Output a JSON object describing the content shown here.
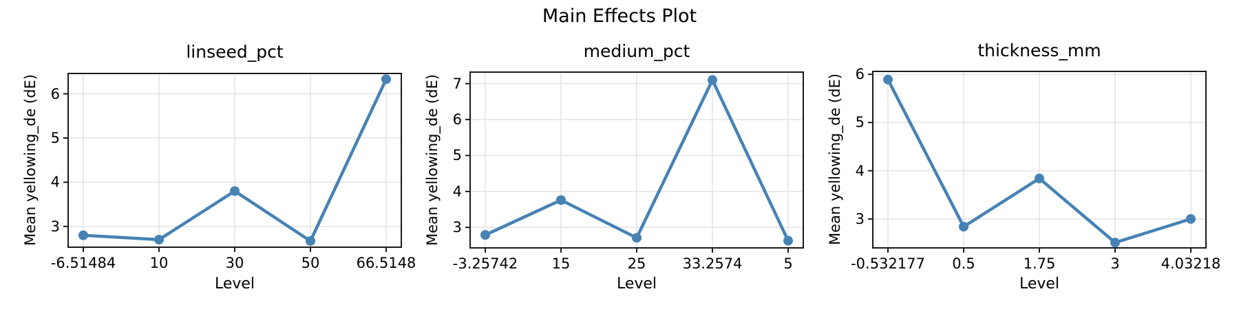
{
  "figure": {
    "suptitle": "Main Effects Plot"
  },
  "colors": {
    "line": "#4682B4",
    "grid": "#E3E3E3",
    "spine": "#1A1A1A",
    "text": "#000000"
  },
  "chart_data": [
    {
      "type": "line",
      "title": "linseed_pct",
      "xlabel": "Level",
      "ylabel": "Mean yellowing_de (dE)",
      "categories": [
        "-6.51484",
        "10",
        "30",
        "50",
        "66.5148"
      ],
      "values": [
        2.8,
        2.7,
        3.8,
        2.67,
        6.33
      ],
      "yticks": [
        3,
        4,
        5,
        6
      ],
      "ylim": [
        2.53,
        6.46
      ],
      "grid": true,
      "legend": "none"
    },
    {
      "type": "line",
      "title": "medium_pct",
      "xlabel": "Level",
      "ylabel": "Mean yellowing_de (dE)",
      "categories": [
        "-3.25742",
        "15",
        "25",
        "33.2574",
        "5"
      ],
      "values": [
        2.79,
        3.76,
        2.71,
        7.1,
        2.63
      ],
      "yticks": [
        3,
        4,
        5,
        6,
        7
      ],
      "ylim": [
        2.43,
        7.32
      ],
      "grid": true,
      "legend": "none"
    },
    {
      "type": "line",
      "title": "thickness_mm",
      "xlabel": "Level",
      "ylabel": "Mean yellowing_de (dE)",
      "categories": [
        "-0.532177",
        "0.5",
        "1.75",
        "3",
        "4.03218"
      ],
      "values": [
        5.89,
        2.84,
        3.84,
        2.51,
        3.0
      ],
      "yticks": [
        3,
        4,
        5,
        6
      ],
      "ylim": [
        2.4,
        6.06
      ],
      "grid": true,
      "legend": "none"
    }
  ]
}
